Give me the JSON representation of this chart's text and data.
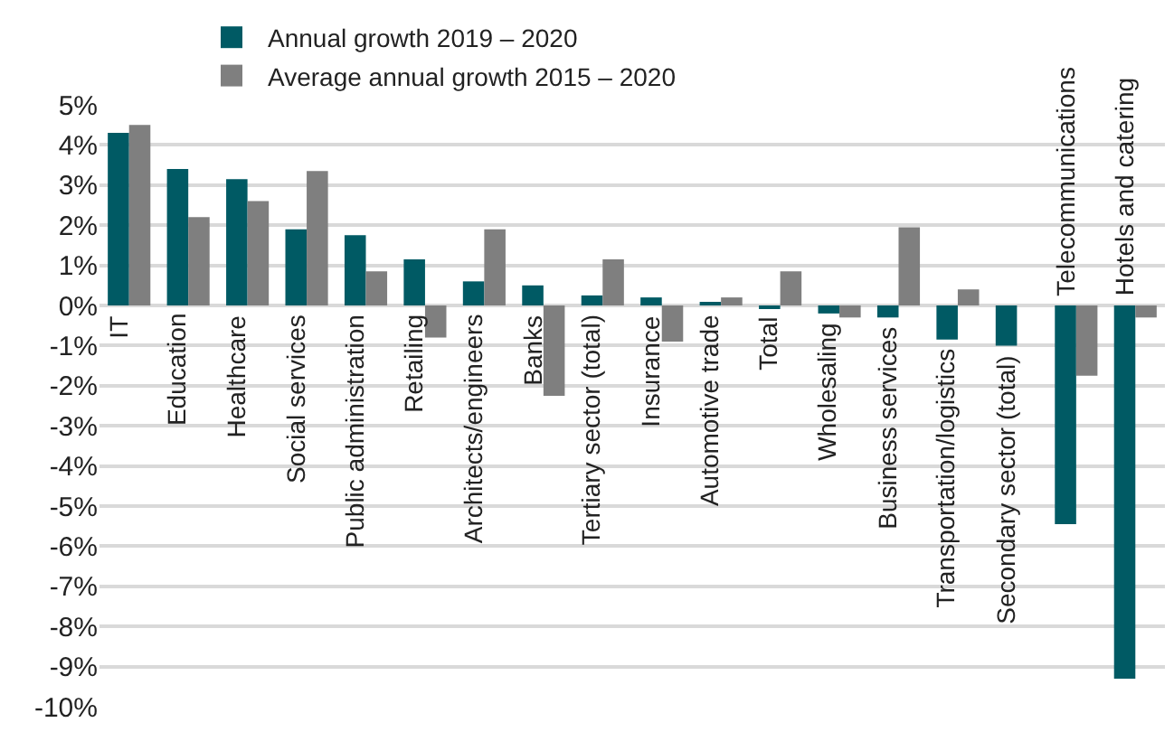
{
  "chart_data": {
    "type": "bar",
    "categories": [
      "IT",
      "Education",
      "Healthcare",
      "Social services",
      "Public administration",
      "Retailing",
      "Architects/engineers",
      "Banks",
      "Tertiary sector (total)",
      "Insurance",
      "Automotive trade",
      "Total",
      "Wholesaling",
      "Business services",
      "Transportation/logistics",
      "Secondary sector (total)",
      "Telecommunications",
      "Hotels and catering"
    ],
    "series": [
      {
        "name": "Annual growth 2019 – 2020",
        "color": "#005a64",
        "values": [
          4.3,
          3.4,
          3.15,
          1.9,
          1.75,
          1.15,
          0.6,
          0.5,
          0.25,
          0.2,
          0.05,
          -0.05,
          -0.2,
          -0.3,
          -0.85,
          -1.0,
          -5.45,
          -9.3
        ]
      },
      {
        "name": "Average annual growth 2015 – 2020",
        "color": "#7f7f7f",
        "values": [
          4.5,
          2.2,
          2.6,
          3.35,
          0.85,
          -0.8,
          1.9,
          -2.25,
          1.15,
          -0.9,
          0.2,
          0.85,
          -0.3,
          1.95,
          0.4,
          0,
          -1.75,
          -0.3
        ]
      }
    ],
    "ylim": [
      -10,
      5
    ],
    "yticks": [
      {
        "value": 5,
        "label": "5%"
      },
      {
        "value": 4,
        "label": "4%"
      },
      {
        "value": 3,
        "label": "3%"
      },
      {
        "value": 2,
        "label": "2%"
      },
      {
        "value": 1,
        "label": "1%"
      },
      {
        "value": 0,
        "label": "0%"
      },
      {
        "value": -1,
        "label": "-1%"
      },
      {
        "value": -2,
        "label": "-2%"
      },
      {
        "value": -3,
        "label": "-3%"
      },
      {
        "value": -4,
        "label": "-4%"
      },
      {
        "value": -5,
        "label": "-5%"
      },
      {
        "value": -6,
        "label": "-6%"
      },
      {
        "value": -7,
        "label": "-7%"
      },
      {
        "value": -8,
        "label": "-8%"
      },
      {
        "value": -9,
        "label": "-9%"
      },
      {
        "value": -10,
        "label": "-10%"
      }
    ],
    "grid": "y",
    "legend": "top left"
  }
}
